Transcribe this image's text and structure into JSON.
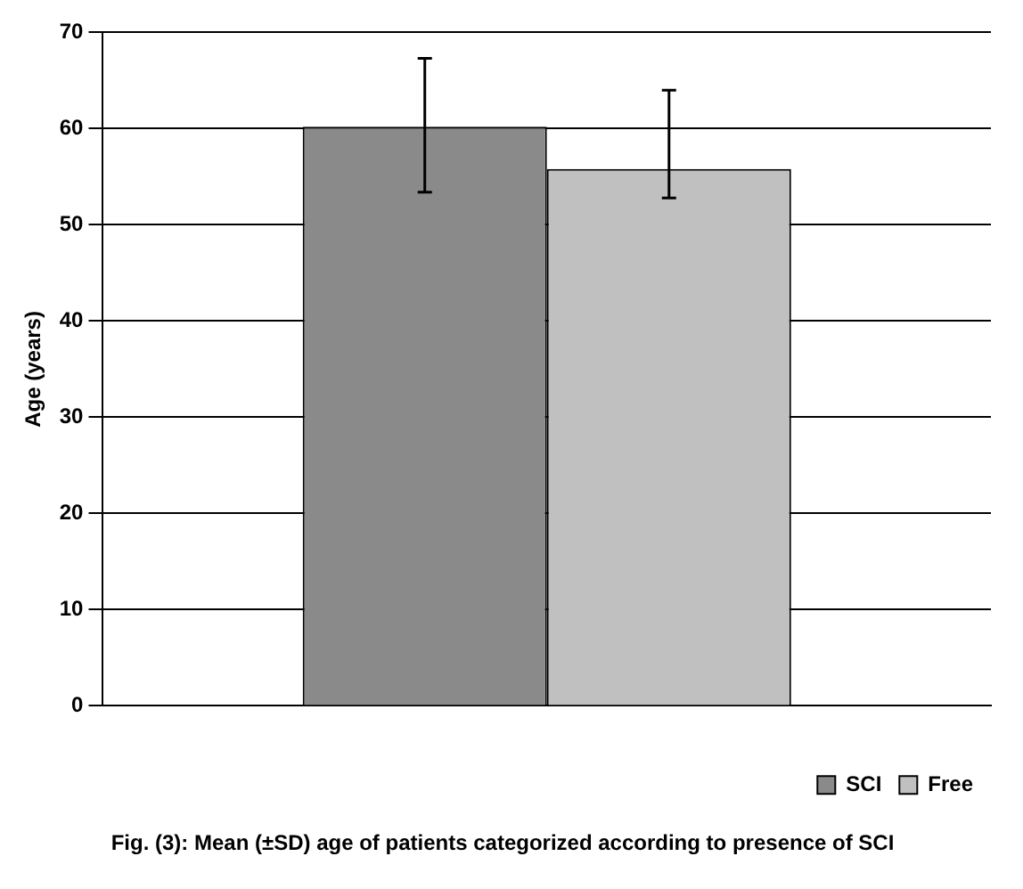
{
  "chart_data": {
    "type": "bar",
    "title": "Fig. (3): Mean (±SD) age of patients categorized according to presence of SCI",
    "ylabel": "Age (years)",
    "categories": [
      null
    ],
    "series": [
      {
        "name": "SCI",
        "color": "#8a8a8a",
        "values": [
          60.2
        ],
        "errors": [
          [
            53.4,
            67.3
          ]
        ]
      },
      {
        "name": "Free",
        "color": "#c0c0c0",
        "values": [
          55.8
        ],
        "errors": [
          [
            52.8,
            64.0
          ]
        ]
      }
    ],
    "ylim": [
      0,
      70
    ],
    "yticks": [
      0,
      10,
      20,
      30,
      40,
      50,
      60,
      70
    ],
    "grid": "y",
    "legend": "bottom right"
  }
}
